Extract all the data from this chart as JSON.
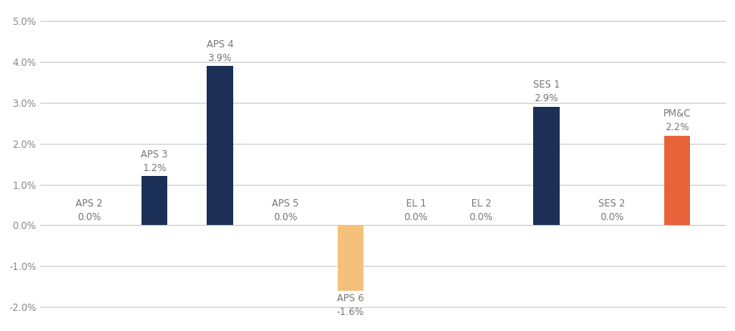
{
  "categories": [
    "APS 2",
    "APS 3",
    "APS 4",
    "APS 5",
    "APS 6",
    "EL 1",
    "EL 2",
    "SES 1",
    "SES 2",
    "PM&C"
  ],
  "values": [
    0.0,
    1.2,
    3.9,
    0.0,
    -1.6,
    0.0,
    0.0,
    2.9,
    0.0,
    2.2
  ],
  "labels": [
    "0.0%",
    "1.2%",
    "3.9%",
    "0.0%",
    "-1.6%",
    "0.0%",
    "0.0%",
    "2.9%",
    "0.0%",
    "2.2%"
  ],
  "bar_colors": [
    "#1c3057",
    "#1c3057",
    "#1c3057",
    "#1c3057",
    "#f5c07a",
    "#1c3057",
    "#1c3057",
    "#1c3057",
    "#1c3057",
    "#e8623a"
  ],
  "ylim": [
    -2.3,
    5.3
  ],
  "yticks": [
    -2.0,
    -1.0,
    0.0,
    1.0,
    2.0,
    3.0,
    4.0,
    5.0
  ],
  "background_color": "#ffffff",
  "grid_color": "#cccccc",
  "label_fontsize": 8.5,
  "tick_fontsize": 8.5,
  "bar_width": 0.4
}
